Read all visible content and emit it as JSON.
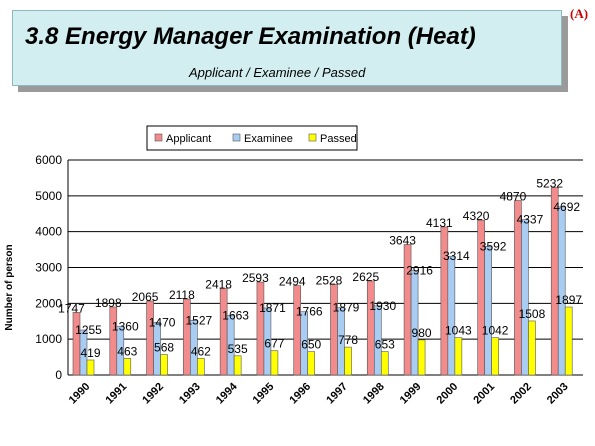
{
  "corner_mark": "(A)",
  "header": {
    "title": "3.8  Energy Manager Examination (Heat)",
    "subtitle": "Applicant / Examinee / Passed"
  },
  "chart_data": {
    "type": "bar",
    "categories": [
      "1990",
      "1991",
      "1992",
      "1993",
      "1994",
      "1995",
      "1996",
      "1997",
      "1998",
      "1999",
      "2000",
      "2001",
      "2002",
      "2003"
    ],
    "series": [
      {
        "name": "Applicant",
        "color": "#f28b8b",
        "values": [
          1747,
          1898,
          2065,
          2118,
          2418,
          2593,
          2494,
          2528,
          2625,
          3643,
          4131,
          4320,
          4870,
          5232
        ]
      },
      {
        "name": "Examinee",
        "color": "#a9cdf2",
        "values": [
          1255,
          1360,
          1470,
          1527,
          1663,
          1871,
          1766,
          1879,
          1930,
          2916,
          3314,
          3592,
          4337,
          4692
        ]
      },
      {
        "name": "Passed",
        "color": "#ffff00",
        "values": [
          419,
          463,
          568,
          462,
          535,
          677,
          650,
          778,
          653,
          980,
          1043,
          1042,
          1508,
          1897
        ]
      }
    ],
    "ylabel": "Number of person",
    "ylim": [
      0,
      6000
    ],
    "yticks": [
      0,
      1000,
      2000,
      3000,
      4000,
      5000,
      6000
    ],
    "grid": true,
    "legend": "top"
  }
}
